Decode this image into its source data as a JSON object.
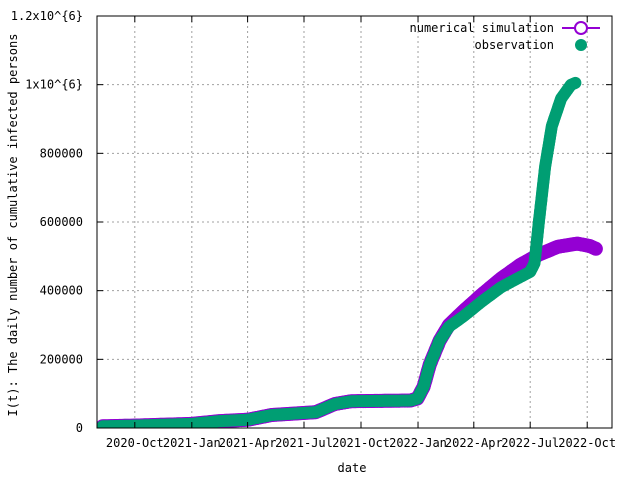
{
  "chart_data": {
    "type": "scatter",
    "title": "",
    "xlabel": "date",
    "ylabel": "I(t): The daily number of cumulative infected persons",
    "x_type": "date",
    "xlim": [
      "2020-08-01",
      "2022-11-10"
    ],
    "ylim": [
      0,
      1200000
    ],
    "x_ticks": [
      {
        "date": "2020-10-01",
        "label": "2020-Oct"
      },
      {
        "date": "2021-01-01",
        "label": "2021-Jan"
      },
      {
        "date": "2021-04-01",
        "label": "2021-Apr"
      },
      {
        "date": "2021-07-01",
        "label": "2021-Jul"
      },
      {
        "date": "2021-10-01",
        "label": "2021-Oct"
      },
      {
        "date": "2022-01-01",
        "label": "2022-Jan"
      },
      {
        "date": "2022-04-01",
        "label": "2022-Apr"
      },
      {
        "date": "2022-07-01",
        "label": "2022-Jul"
      },
      {
        "date": "2022-10-01",
        "label": "2022-Oct"
      }
    ],
    "y_ticks": [
      {
        "value": 0,
        "label": "0"
      },
      {
        "value": 200000,
        "label": "200000"
      },
      {
        "value": 400000,
        "label": "400000"
      },
      {
        "value": 600000,
        "label": "600000"
      },
      {
        "value": 800000,
        "label": "800000"
      },
      {
        "value": 1000000,
        "label": "1x10^{6}"
      },
      {
        "value": 1200000,
        "label": "1.2x10^{6}"
      }
    ],
    "grid": true,
    "legend_position": "top-right",
    "series": [
      {
        "name": "numerical simulation",
        "marker": "open-circle",
        "color": "#9400d3",
        "points": [
          [
            "2020-08-10",
            5000
          ],
          [
            "2020-10-01",
            7000
          ],
          [
            "2021-01-01",
            12000
          ],
          [
            "2021-02-15",
            20000
          ],
          [
            "2021-04-01",
            24000
          ],
          [
            "2021-05-10",
            38000
          ],
          [
            "2021-06-15",
            42000
          ],
          [
            "2021-07-20",
            46000
          ],
          [
            "2021-08-20",
            70000
          ],
          [
            "2021-09-15",
            78000
          ],
          [
            "2021-12-20",
            80000
          ],
          [
            "2021-12-31",
            86000
          ],
          [
            "2022-01-10",
            120000
          ],
          [
            "2022-01-20",
            185000
          ],
          [
            "2022-02-05",
            255000
          ],
          [
            "2022-02-20",
            300000
          ],
          [
            "2022-03-15",
            340000
          ],
          [
            "2022-04-15",
            390000
          ],
          [
            "2022-05-15",
            435000
          ],
          [
            "2022-06-15",
            475000
          ],
          [
            "2022-07-15",
            505000
          ],
          [
            "2022-08-15",
            528000
          ],
          [
            "2022-09-15",
            537000
          ],
          [
            "2022-10-05",
            530000
          ],
          [
            "2022-10-15",
            522000
          ]
        ]
      },
      {
        "name": "observation",
        "marker": "filled-circle",
        "color": "#009e73",
        "points": [
          [
            "2020-08-10",
            5000
          ],
          [
            "2020-10-01",
            7000
          ],
          [
            "2021-01-01",
            12000
          ],
          [
            "2021-02-15",
            20000
          ],
          [
            "2021-04-01",
            24000
          ],
          [
            "2021-05-10",
            38000
          ],
          [
            "2021-06-15",
            42000
          ],
          [
            "2021-07-20",
            46000
          ],
          [
            "2021-08-20",
            70000
          ],
          [
            "2021-09-15",
            78000
          ],
          [
            "2021-12-20",
            80000
          ],
          [
            "2021-12-31",
            86000
          ],
          [
            "2022-01-10",
            120000
          ],
          [
            "2022-01-20",
            185000
          ],
          [
            "2022-02-05",
            255000
          ],
          [
            "2022-02-20",
            295000
          ],
          [
            "2022-03-15",
            325000
          ],
          [
            "2022-04-15",
            370000
          ],
          [
            "2022-05-15",
            410000
          ],
          [
            "2022-06-15",
            440000
          ],
          [
            "2022-07-01",
            455000
          ],
          [
            "2022-07-08",
            480000
          ],
          [
            "2022-07-15",
            600000
          ],
          [
            "2022-07-25",
            760000
          ],
          [
            "2022-08-05",
            880000
          ],
          [
            "2022-08-20",
            960000
          ],
          [
            "2022-09-05",
            1000000
          ],
          [
            "2022-09-12",
            1005000
          ]
        ]
      }
    ]
  }
}
